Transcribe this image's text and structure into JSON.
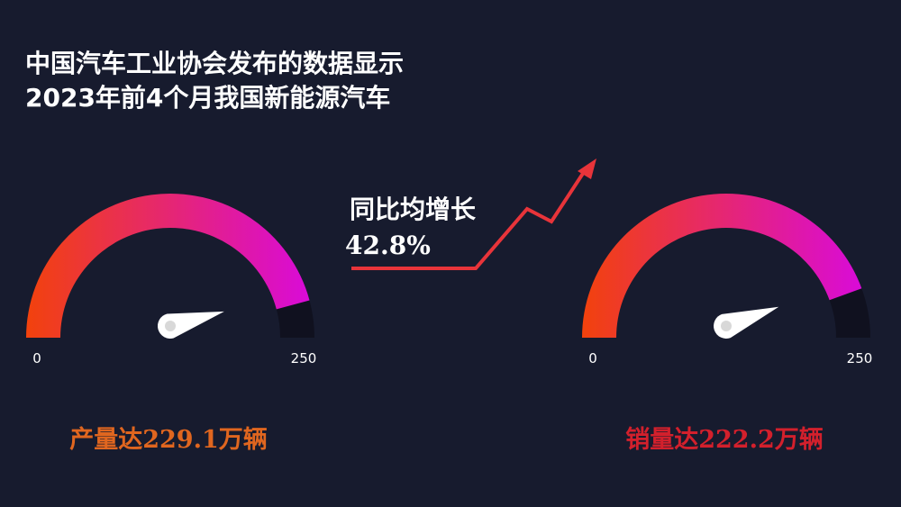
{
  "title_lines": [
    "中国汽车工业协会发布的数据显示",
    "2023年前4个月我国新能源汽车"
  ],
  "annotations": [
    "同比均增长",
    "42.8%"
  ],
  "chart_data": [
    {
      "type": "gauge",
      "values": [
        229.1
      ],
      "value_labels": [
        "产量达229.1万辆"
      ],
      "ylim": [
        0,
        250
      ],
      "yticks": [
        0,
        250
      ],
      "colors": [
        "#f2420c",
        "#d90bd8"
      ],
      "label_color": "#e0661f"
    },
    {
      "type": "gauge",
      "values": [
        222.2
      ],
      "value_labels": [
        "销量达222.2万辆"
      ],
      "ylim": [
        0,
        250
      ],
      "yticks": [
        0,
        250
      ],
      "colors": [
        "#f2420c",
        "#d90bd8"
      ],
      "label_color": "#d3202c"
    }
  ]
}
